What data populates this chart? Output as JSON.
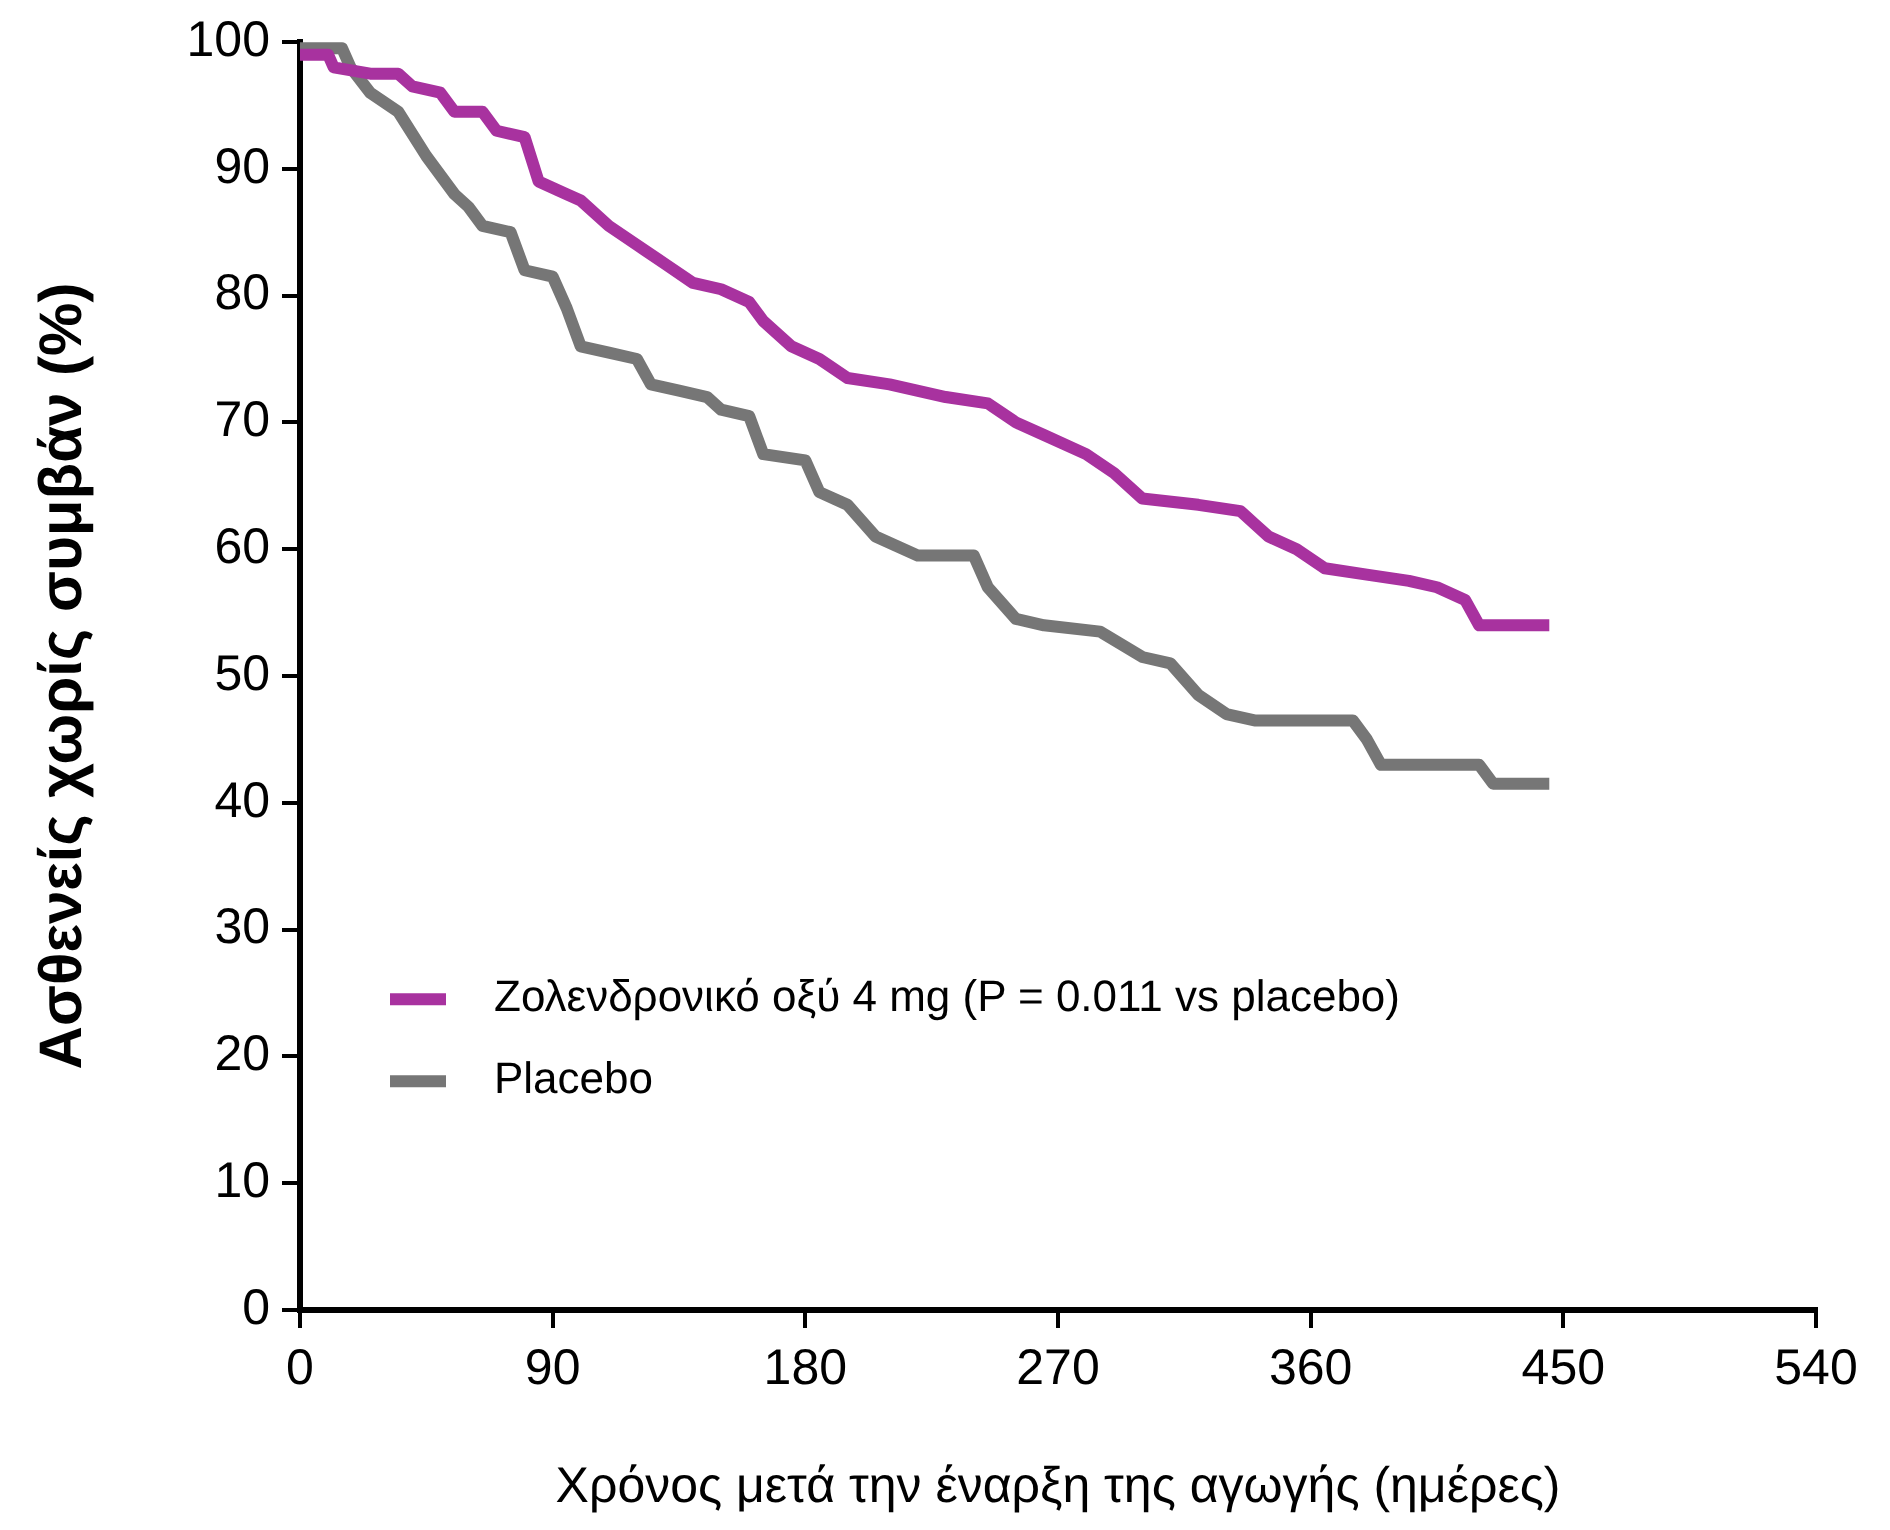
{
  "chart_data": {
    "type": "line",
    "xlabel": "Χρόνος μετά την έναρξη της αγωγής (ημέρες)",
    "ylabel": "Ασθενείς χωρίς συμβάν (%)",
    "xlim": [
      0,
      540
    ],
    "xticks": [
      0,
      90,
      180,
      270,
      360,
      450,
      540
    ],
    "ylim": [
      0,
      100
    ],
    "yticks": [
      0,
      10,
      20,
      30,
      40,
      50,
      60,
      70,
      80,
      90,
      100
    ],
    "grid": false,
    "legend": "left",
    "marker": "none",
    "line_style": "solid",
    "series": [
      {
        "name": "Ζολενδρονικό οξύ 4 mg (P = 0.011 vs placebo)",
        "color": "#a8329f",
        "x": [
          0,
          10,
          12,
          25,
          35,
          40,
          50,
          55,
          65,
          70,
          80,
          85,
          95,
          100,
          110,
          120,
          130,
          140,
          150,
          160,
          165,
          175,
          185,
          195,
          210,
          230,
          245,
          255,
          265,
          280,
          290,
          300,
          320,
          335,
          340,
          345,
          355,
          365,
          380,
          395,
          405,
          415,
          420,
          445
        ],
        "values": [
          99,
          99,
          98,
          97.5,
          97.5,
          96.5,
          96,
          94.5,
          94.5,
          93,
          92.5,
          89,
          88,
          87.5,
          85.5,
          84,
          82.5,
          81,
          80.5,
          79.5,
          78,
          76,
          75,
          73.5,
          73,
          72,
          71.5,
          70,
          69,
          67.5,
          66,
          64,
          63.5,
          63,
          62,
          61,
          60,
          58.5,
          58,
          57.5,
          57,
          56,
          54,
          54
        ]
      },
      {
        "name": "Placebo",
        "color": "#767676",
        "x": [
          0,
          15,
          18,
          25,
          35,
          45,
          55,
          60,
          65,
          75,
          80,
          90,
          95,
          100,
          110,
          120,
          125,
          135,
          145,
          150,
          160,
          165,
          180,
          185,
          195,
          205,
          220,
          240,
          245,
          255,
          265,
          285,
          300,
          310,
          320,
          330,
          340,
          375,
          380,
          385,
          420,
          425,
          445
        ],
        "values": [
          99.5,
          99.5,
          98,
          96,
          94.5,
          91,
          88,
          87,
          85.5,
          85,
          82,
          81.5,
          79,
          76,
          75.5,
          75,
          73,
          72.5,
          72,
          71,
          70.5,
          67.5,
          67,
          64.5,
          63.5,
          61,
          59.5,
          59.5,
          57,
          54.5,
          54,
          53.5,
          51.5,
          51,
          48.5,
          47,
          46.5,
          46.5,
          45,
          43,
          43,
          41.5,
          41.5
        ]
      }
    ]
  }
}
